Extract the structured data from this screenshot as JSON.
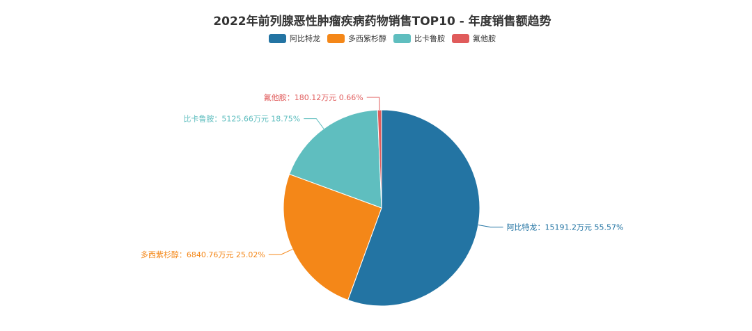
{
  "chart_data": {
    "type": "pie",
    "title": "2022年前列腺恶性肿瘤疾病药物销售TOP10 - 年度销售额趋势",
    "unit": "万元",
    "legend_position": "top-center",
    "series": [
      {
        "name": "阿比特龙",
        "value": 15191.2,
        "value_text": "15191.2",
        "percent": "55.57%",
        "color": "#2374a3"
      },
      {
        "name": "多西紫杉醇",
        "value": 6840.76,
        "value_text": "6840.76",
        "percent": "25.02%",
        "color": "#f48718"
      },
      {
        "name": "比卡鲁胺",
        "value": 5125.66,
        "value_text": "5125.66",
        "percent": "18.75%",
        "color": "#5fbebf"
      },
      {
        "name": "氟他胺",
        "value": 180.12,
        "value_text": "180.12",
        "percent": "0.66%",
        "color": "#e05b5b"
      }
    ]
  }
}
